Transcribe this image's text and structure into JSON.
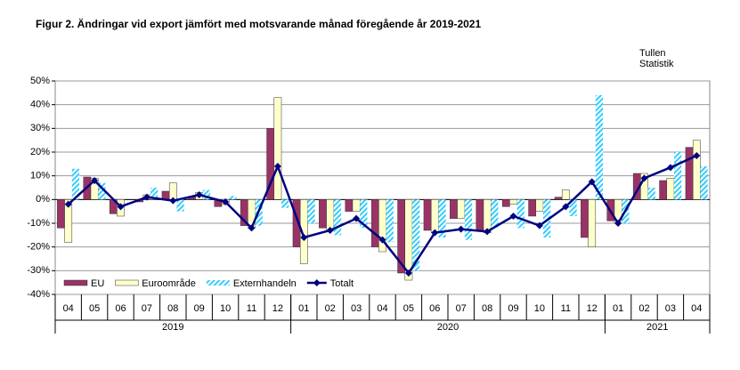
{
  "chart_data": {
    "type": "bar-line",
    "title": "Figur  2. Ändringar vid  export jämfört med motsvarande månad föregående år 2019-2021",
    "source": [
      "Tullen",
      "Statistik"
    ],
    "groups": [
      {
        "label": "2019",
        "categories": [
          "04",
          "05",
          "06",
          "07",
          "08",
          "09",
          "10",
          "11",
          "12"
        ]
      },
      {
        "label": "2020",
        "categories": [
          "01",
          "02",
          "03",
          "04",
          "05",
          "06",
          "07",
          "08",
          "09",
          "10",
          "11",
          "12"
        ]
      },
      {
        "label": "2021",
        "categories": [
          "01",
          "02",
          "03",
          "04"
        ]
      }
    ],
    "series": [
      {
        "name": "EU",
        "color": "#993366",
        "style": "solid",
        "values": [
          -12,
          9.5,
          -6,
          -1,
          3.5,
          1,
          -3,
          -11,
          30,
          -20,
          -12,
          -5,
          -20,
          -31,
          -13,
          -8,
          -13,
          -3,
          -7,
          1,
          -16,
          -9,
          11,
          8,
          22
        ]
      },
      {
        "name": "Euroområde",
        "color": "#ffffcc",
        "style": "solid",
        "values": [
          -18,
          9,
          -7,
          2,
          7,
          3,
          -2,
          -12,
          43,
          -27,
          -13,
          -5,
          -22,
          -34,
          -14,
          -8,
          -14,
          -2,
          -5,
          4,
          -20,
          -10,
          11,
          9,
          25
        ]
      },
      {
        "name": "Externhandeln",
        "color": "#33ccff",
        "style": "hatch",
        "values": [
          13,
          7,
          0,
          5,
          -5,
          4,
          1.5,
          -11,
          -3.5,
          -10,
          -15,
          -12,
          -18,
          -30,
          -16,
          -17,
          -12,
          -12,
          -16,
          -7,
          44,
          -10,
          5,
          20,
          14
        ]
      },
      {
        "name": "Totalt",
        "color": "#000080",
        "style": "line",
        "values": [
          -2,
          8,
          -3,
          1,
          -0.5,
          2,
          -1,
          -12,
          14,
          -16,
          -13,
          -8,
          -17,
          -31,
          -14,
          -12.5,
          -13.5,
          -7,
          -11,
          -3,
          7.5,
          -10,
          9,
          13.5,
          18.5
        ]
      }
    ],
    "ylim": [
      -40,
      50
    ],
    "yticks": [
      {
        "value": -40,
        "label": "-40%"
      },
      {
        "value": -30,
        "label": "-30%"
      },
      {
        "value": -20,
        "label": "-20%"
      },
      {
        "value": -10,
        "label": "-10%"
      },
      {
        "value": 0,
        "label": "0%"
      },
      {
        "value": 10,
        "label": "10%"
      },
      {
        "value": 20,
        "label": "20%"
      },
      {
        "value": 30,
        "label": "30%"
      },
      {
        "value": 40,
        "label": "40%"
      },
      {
        "value": 50,
        "label": "50%"
      }
    ],
    "grid": true,
    "legend": "lower left"
  }
}
